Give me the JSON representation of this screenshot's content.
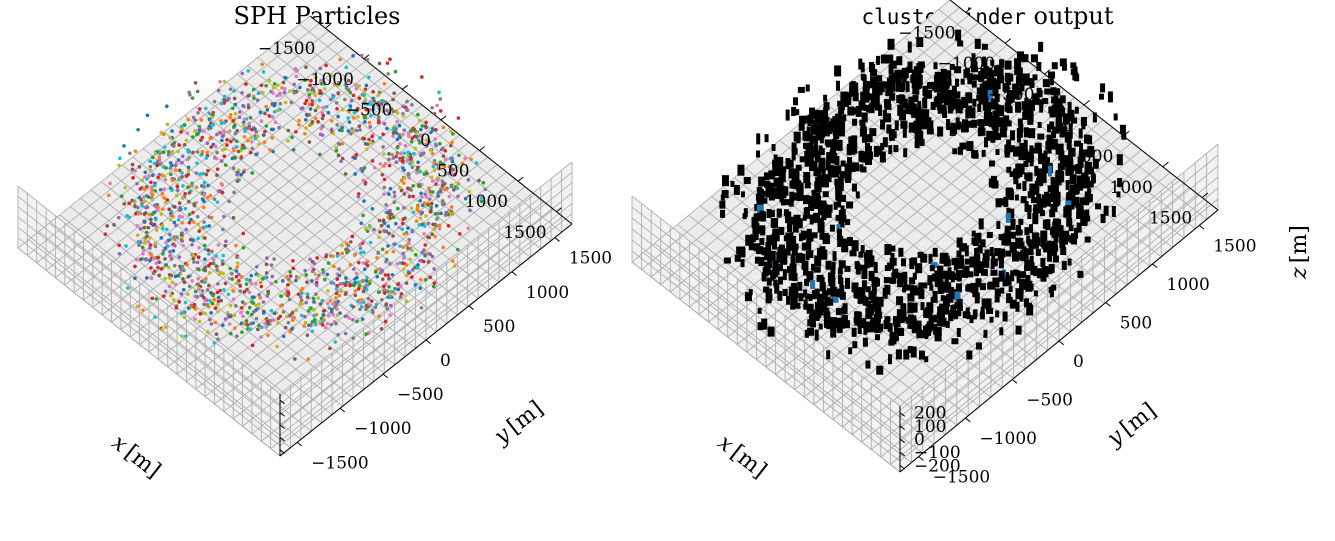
{
  "chart_data": [
    {
      "type": "scatter",
      "title": "SPH Particles",
      "xlabel_var": "x",
      "xlabel_unit": "[m]",
      "ylabel_var": "y",
      "ylabel_unit": "[m]",
      "zlabel_var": "",
      "zlabel_unit": "",
      "x_ticks": [
        "−1500",
        "−1000",
        "−500",
        "0",
        "500",
        "1000",
        "1500"
      ],
      "y_ticks": [
        "−1500",
        "−1000",
        "−500",
        "0",
        "500",
        "1000",
        "1500"
      ],
      "z_ticks": [],
      "xlim": [
        -1700,
        1700
      ],
      "ylim": [
        -1700,
        1700
      ],
      "zlim": [
        -250,
        250
      ],
      "distribution": "ring",
      "ring_inner_radius": 500,
      "ring_outer_radius": 1400,
      "point_count": 1800,
      "marker_colors": [
        "#1f77b4",
        "#ff7f0e",
        "#2ca02c",
        "#d62728",
        "#9467bd",
        "#8c564b",
        "#e377c2",
        "#7f7f7f",
        "#bcbd22",
        "#17becf"
      ],
      "grid": true
    },
    {
      "type": "scatter",
      "title_mono": "clusterfinder",
      "title_rest": " output",
      "xlabel_var": "x",
      "xlabel_unit": "[m]",
      "ylabel_var": "y",
      "ylabel_unit": "[m]",
      "zlabel_var": "z",
      "zlabel_unit": "[m]",
      "x_ticks": [
        "−1500",
        "−1000",
        "−500",
        "0",
        "500",
        "1000",
        "1500"
      ],
      "y_ticks": [
        "−1500",
        "−1000",
        "−500",
        "0",
        "500",
        "1000",
        "1500"
      ],
      "z_ticks": [
        "200",
        "100",
        "0",
        "−100",
        "−200"
      ],
      "xlim": [
        -1700,
        1700
      ],
      "ylim": [
        -1700,
        1700
      ],
      "zlim": [
        -250,
        250
      ],
      "distribution": "ring",
      "ring_inner_radius": 500,
      "ring_outer_radius": 1400,
      "point_count": 1600,
      "marker_colors": [
        "#000000"
      ],
      "highlight_color": "#1f77b4",
      "grid": true
    }
  ]
}
